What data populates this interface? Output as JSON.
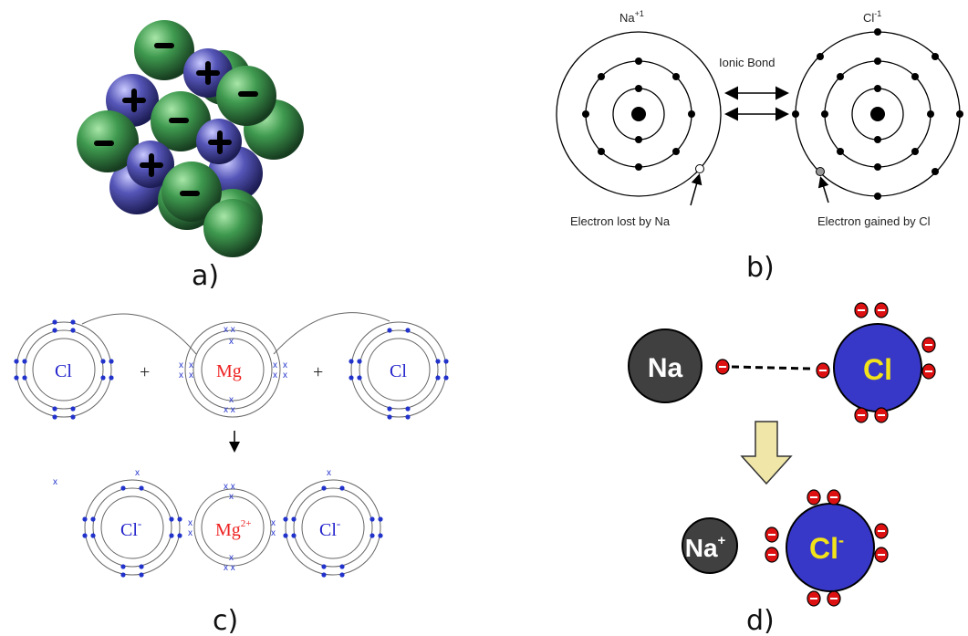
{
  "panels": {
    "a": {
      "caption": "a)",
      "colors": {
        "anion": "#3f9a4f",
        "cation": "#5555b8"
      },
      "icons": {
        "plus": "plus-sign",
        "minus": "minus-sign"
      }
    },
    "b": {
      "caption": "b)",
      "na_symbol": "Na",
      "na_charge": "+1",
      "cl_symbol": "Cl",
      "cl_charge": "-1",
      "bond_label": "Ionic Bond",
      "lost_label": "Electron lost by Na",
      "gained_label": "Electron gained by Cl"
    },
    "c": {
      "caption": "c)",
      "cl_left": "Cl",
      "mg": "Mg",
      "cl_right": "Cl",
      "plus1": "+",
      "plus2": "+",
      "cl_ion_left": "Cl",
      "cl_ion_left_charge": "-",
      "mg_ion": "Mg",
      "mg_ion_charge": "2+",
      "cl_ion_right": "Cl",
      "cl_ion_right_charge": "-",
      "colors": {
        "cl_text": "#2222cc",
        "mg_text": "#ee2222",
        "electron": "#2233cc"
      }
    },
    "d": {
      "caption": "d)",
      "na_top": "Na",
      "cl_top": "Cl",
      "na_bottom": "Na",
      "na_bottom_charge": "+",
      "cl_bottom": "Cl",
      "cl_bottom_charge": "-",
      "colors": {
        "na_fill": "#404040",
        "cl_fill": "#3838c8",
        "cl_text": "#f2e21a",
        "electron": "#dd1111",
        "arrow_fill": "#efe6a8"
      }
    }
  }
}
